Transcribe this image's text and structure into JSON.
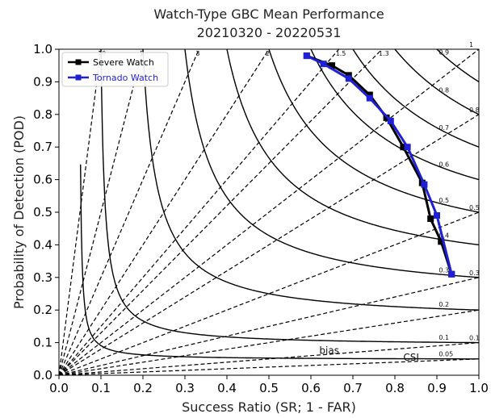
{
  "chart_data": {
    "type": "line",
    "title": "Watch-Type GBC Mean Performance",
    "subtitle": "20210320 - 20220531",
    "xlabel": "Success Ratio (SR; 1 - FAR)",
    "ylabel": "Probability of Detection (POD)",
    "xlim": [
      0,
      1
    ],
    "ylim": [
      0,
      1
    ],
    "x_ticks": [
      "0.0",
      "0.1",
      "0.2",
      "0.3",
      "0.4",
      "0.5",
      "0.6",
      "0.7",
      "0.8",
      "0.9",
      "1.0"
    ],
    "y_ticks": [
      "0.0",
      "0.1",
      "0.2",
      "0.3",
      "0.4",
      "0.5",
      "0.6",
      "0.7",
      "0.8",
      "0.9",
      "1.0"
    ],
    "grid": false,
    "legend_position": "top-left",
    "series": [
      {
        "name": "Severe Watch",
        "color": "#000000",
        "marker": "square",
        "points": [
          [
            0.59,
            0.98
          ],
          [
            0.65,
            0.95
          ],
          [
            0.69,
            0.92
          ],
          [
            0.74,
            0.86
          ],
          [
            0.78,
            0.79
          ],
          [
            0.82,
            0.7
          ],
          [
            0.865,
            0.59
          ],
          [
            0.885,
            0.48
          ],
          [
            0.91,
            0.41
          ],
          [
            0.935,
            0.31
          ]
        ]
      },
      {
        "name": "Tornado Watch",
        "color": "#1f1fd6",
        "marker": "square",
        "points": [
          [
            0.59,
            0.98
          ],
          [
            0.63,
            0.955
          ],
          [
            0.69,
            0.91
          ],
          [
            0.74,
            0.85
          ],
          [
            0.79,
            0.78
          ],
          [
            0.83,
            0.7
          ],
          [
            0.87,
            0.585
          ],
          [
            0.9,
            0.49
          ],
          [
            0.935,
            0.31
          ]
        ]
      }
    ],
    "bias_lines": [
      0.05,
      0.1,
      0.2,
      0.3,
      0.5,
      0.8,
      1,
      1.3,
      1.5,
      2,
      3,
      5,
      10
    ],
    "bias_labels": [
      {
        "text": "10",
        "value": 10
      },
      {
        "text": "5",
        "value": 5
      },
      {
        "text": "3",
        "value": 3
      },
      {
        "text": "2",
        "value": 2
      },
      {
        "text": "1.5",
        "value": 1.5
      },
      {
        "text": "1.3",
        "value": 1.3
      },
      {
        "text": "1",
        "value": 1
      },
      {
        "text": "0.8",
        "value": 0.8
      },
      {
        "text": "0.5",
        "value": 0.5
      },
      {
        "text": "0.3",
        "value": 0.3
      },
      {
        "text": "0.1",
        "value": 0.1
      }
    ],
    "csi_levels": [
      0.05,
      0.1,
      0.2,
      0.3,
      0.4,
      0.5,
      0.6,
      0.7,
      0.8,
      0.9
    ],
    "csi_labels": [
      {
        "text": "0.9",
        "value": 0.9
      },
      {
        "text": "0.8",
        "value": 0.8
      },
      {
        "text": "0.7",
        "value": 0.7
      },
      {
        "text": "0.6",
        "value": 0.6
      },
      {
        "text": "0.5",
        "value": 0.5
      },
      {
        "text": "0.4",
        "value": 0.4
      },
      {
        "text": "0.3",
        "value": 0.3
      },
      {
        "text": "0.2",
        "value": 0.2
      },
      {
        "text": "0.1",
        "value": 0.1
      },
      {
        "text": "0.05",
        "value": 0.05
      }
    ],
    "annotations": {
      "bias": "bias",
      "csi": "CSI"
    }
  }
}
